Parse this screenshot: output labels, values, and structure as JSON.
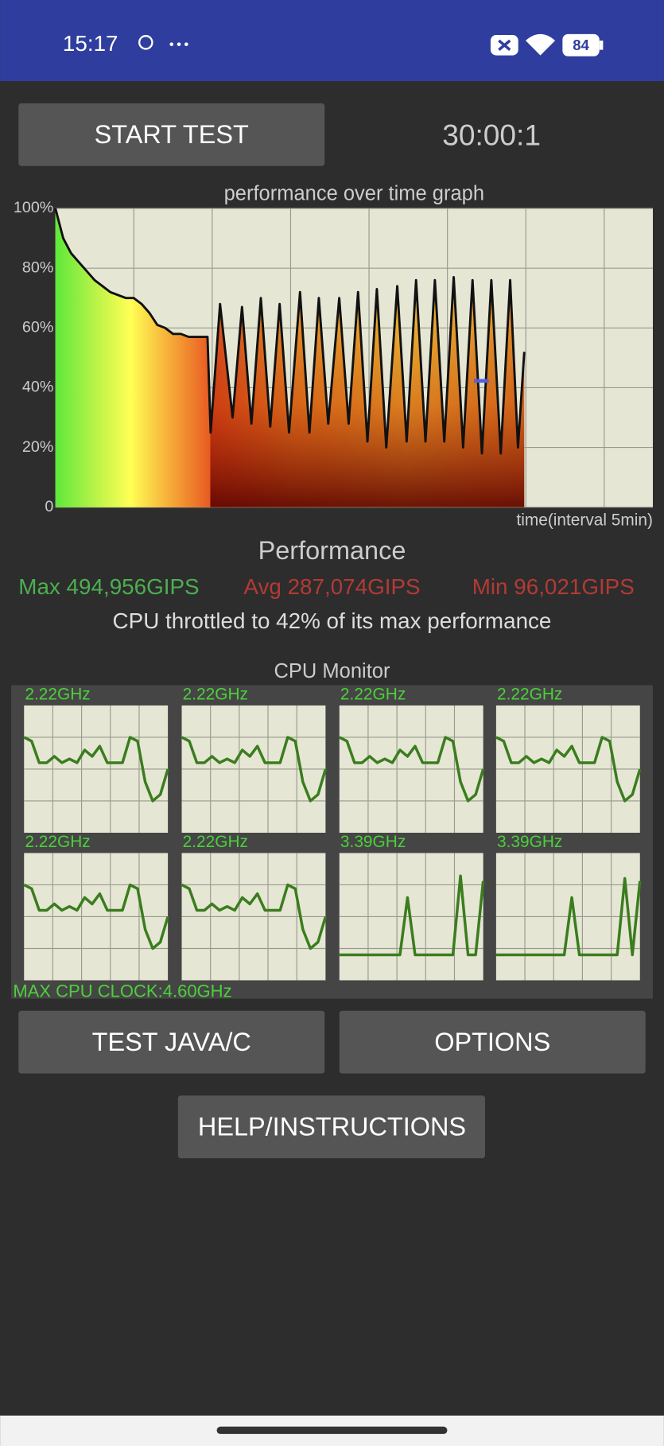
{
  "status_bar": {
    "time": "15:17",
    "battery": "84"
  },
  "controls": {
    "start_button": "START TEST",
    "timer": "30:00:1"
  },
  "chart_data": {
    "type": "line",
    "title": "performance over time graph",
    "x_label": "time(interval 5min)",
    "xlim": [
      0,
      38.1
    ],
    "xticks": [
      5,
      10,
      15,
      20,
      25,
      30,
      35
    ],
    "ylim": [
      0,
      100
    ],
    "yticks": [
      0,
      {
        "value": 20,
        "label": "20%"
      },
      {
        "value": 40,
        "label": "40%"
      },
      {
        "value": 60,
        "label": "60%"
      },
      {
        "value": 80,
        "label": "80%"
      },
      {
        "value": 100,
        "label": "100%"
      }
    ],
    "grid": true,
    "x": [
      0,
      0.5,
      1,
      1.5,
      2,
      2.5,
      3,
      3.5,
      4,
      4.5,
      5,
      5.5,
      6,
      6.5,
      7,
      7.5,
      8,
      8.5,
      9,
      9.5,
      9.7,
      9.9,
      10.5,
      11.3,
      11.9,
      12.5,
      13.1,
      13.7,
      14.3,
      14.9,
      15.6,
      16.2,
      16.8,
      17.4,
      18.1,
      18.7,
      19.3,
      19.9,
      20.5,
      21.1,
      21.8,
      22.4,
      23.0,
      23.6,
      24.2,
      24.8,
      25.4,
      26.0,
      26.6,
      27.2,
      27.8,
      28.4,
      29.0,
      29.5,
      29.9
    ],
    "series": [
      {
        "color": "#111111",
        "values": [
          100,
          90,
          85,
          82,
          79,
          76,
          74,
          72,
          71,
          70,
          70,
          68,
          65,
          61,
          60,
          58,
          58,
          57,
          57,
          57,
          57,
          25,
          68,
          30,
          67,
          28,
          70,
          27,
          68,
          25,
          72,
          25,
          70,
          28,
          70,
          28,
          72,
          22,
          73,
          20,
          74,
          22,
          76,
          22,
          76,
          22,
          77,
          20,
          76,
          18,
          76,
          18,
          76,
          20,
          52
        ]
      }
    ]
  },
  "performance": {
    "title": "Performance",
    "max": "Max 494,956GIPS",
    "avg": "Avg 287,074GIPS",
    "min": "Min 96,021GIPS",
    "throttle": "CPU throttled to 42% of its max performance"
  },
  "cpu_monitor": {
    "title": "CPU Monitor",
    "ylim": [
      0,
      100
    ],
    "color": "#3a7d1e",
    "cores": [
      {
        "label": "2.22GHz",
        "values": [
          75,
          72,
          55,
          55,
          60,
          55,
          58,
          55,
          65,
          60,
          68,
          55,
          55,
          55,
          75,
          72,
          40,
          25,
          30,
          50
        ]
      },
      {
        "label": "2.22GHz",
        "values": [
          75,
          72,
          55,
          55,
          60,
          55,
          58,
          55,
          65,
          60,
          68,
          55,
          55,
          55,
          75,
          72,
          40,
          25,
          30,
          50
        ]
      },
      {
        "label": "2.22GHz",
        "values": [
          75,
          72,
          55,
          55,
          60,
          55,
          58,
          55,
          65,
          60,
          68,
          55,
          55,
          55,
          75,
          72,
          40,
          25,
          30,
          50
        ]
      },
      {
        "label": "2.22GHz",
        "values": [
          75,
          72,
          55,
          55,
          60,
          55,
          58,
          55,
          65,
          60,
          68,
          55,
          55,
          55,
          75,
          72,
          40,
          25,
          30,
          50
        ]
      },
      {
        "label": "2.22GHz",
        "values": [
          75,
          72,
          55,
          55,
          60,
          55,
          58,
          55,
          65,
          60,
          68,
          55,
          55,
          55,
          75,
          72,
          40,
          25,
          30,
          50
        ]
      },
      {
        "label": "2.22GHz",
        "values": [
          75,
          72,
          55,
          55,
          60,
          55,
          58,
          55,
          65,
          60,
          68,
          55,
          55,
          55,
          75,
          72,
          40,
          25,
          30,
          50
        ]
      },
      {
        "label": "3.39GHz",
        "values": [
          20,
          20,
          20,
          20,
          20,
          20,
          20,
          20,
          20,
          65,
          20,
          20,
          20,
          20,
          20,
          20,
          82,
          20,
          20,
          78
        ]
      },
      {
        "label": "3.39GHz",
        "values": [
          20,
          20,
          20,
          20,
          20,
          20,
          20,
          20,
          20,
          20,
          65,
          20,
          20,
          20,
          20,
          20,
          20,
          80,
          20,
          78
        ]
      }
    ],
    "max_clock": "MAX CPU CLOCK:4.60GHz"
  },
  "buttons": {
    "test": "TEST JAVA/C",
    "options": "OPTIONS",
    "help": "HELP/INSTRUCTIONS"
  }
}
